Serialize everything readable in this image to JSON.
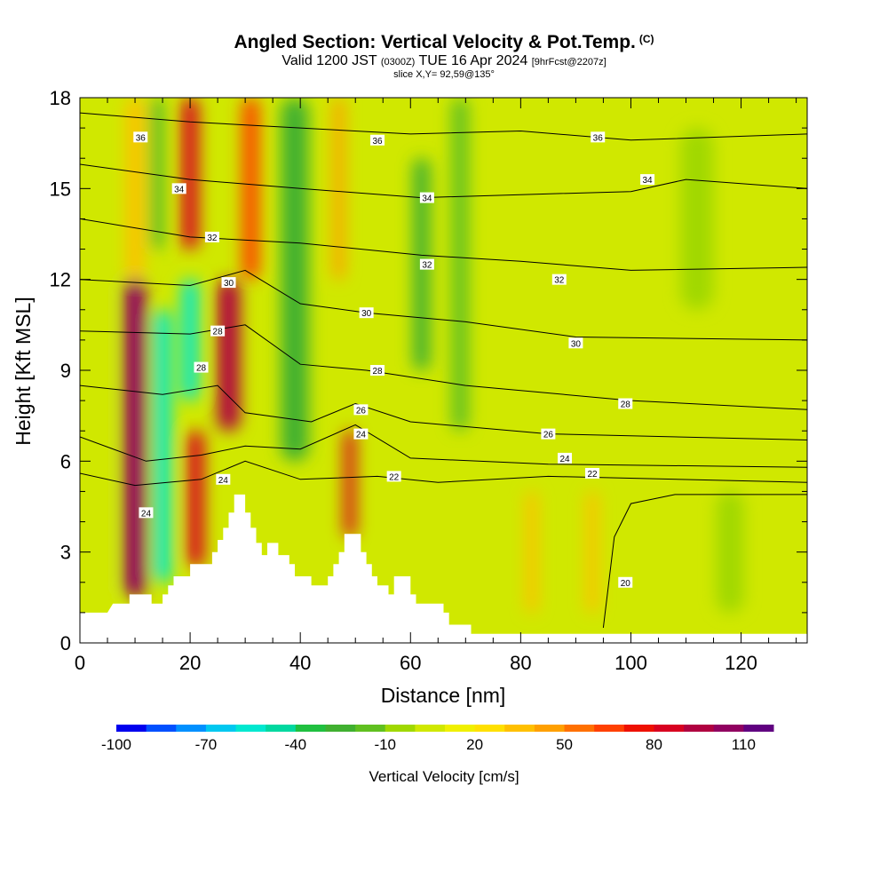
{
  "header": {
    "title": "Angled Section: Vertical Velocity & Pot.Temp.",
    "title_tag": "(C)",
    "valid_prefix": "Valid 1200 JST",
    "valid_z": "(0300Z)",
    "valid_date": "TUE 16 Apr 2024",
    "fcst": "[9hrFcst@2207z]",
    "slice": "slice X,Y= 92,59@135°"
  },
  "chart_data": {
    "type": "heatmap",
    "xlabel": "Distance [nm]",
    "ylabel": "Height [Kft MSL]",
    "xlim": [
      0,
      132
    ],
    "ylim": [
      0,
      18
    ],
    "x_ticks": [
      0,
      20,
      40,
      60,
      80,
      100,
      120
    ],
    "y_ticks": [
      0,
      3,
      6,
      9,
      12,
      15,
      18
    ],
    "colorbar": {
      "label": "Vertical Velocity [cm/s]",
      "tick_labels": [
        "-100",
        "-70",
        "-40",
        "-10",
        "20",
        "50",
        "80",
        "110"
      ],
      "tick_values": [
        -100,
        -70,
        -40,
        -10,
        20,
        50,
        80,
        110
      ],
      "range": [
        -100,
        120
      ],
      "colors": [
        "#0000ee",
        "#0050ff",
        "#0090ff",
        "#00c8f0",
        "#00e8d0",
        "#00d8a0",
        "#20c040",
        "#40b030",
        "#60c020",
        "#a0d800",
        "#d0e800",
        "#f0f000",
        "#ffe000",
        "#ffc000",
        "#ffa000",
        "#ff7000",
        "#ff4000",
        "#ee1000",
        "#d80020",
        "#b00040",
        "#900060",
        "#600080"
      ]
    },
    "velocity_cells": [
      {
        "x": 3,
        "w": 4,
        "ybot": 1,
        "ytop": 18,
        "v": 0
      },
      {
        "x": 10,
        "w": 4,
        "ybot": 1.5,
        "ytop": 12,
        "v": 105
      },
      {
        "x": 10,
        "w": 3,
        "ybot": 12,
        "ytop": 18,
        "v": 30
      },
      {
        "x": 15,
        "w": 3,
        "ybot": 2,
        "ytop": 11,
        "v": -55
      },
      {
        "x": 14,
        "w": 2,
        "ybot": 13,
        "ytop": 18,
        "v": -25
      },
      {
        "x": 21,
        "w": 3,
        "ybot": 2.5,
        "ytop": 7,
        "v": 85
      },
      {
        "x": 20,
        "w": 3,
        "ybot": 13,
        "ytop": 18,
        "v": 85
      },
      {
        "x": 20,
        "w": 3,
        "ybot": 8,
        "ytop": 12,
        "v": -60
      },
      {
        "x": 27,
        "w": 4,
        "ybot": 7,
        "ytop": 12,
        "v": 90
      },
      {
        "x": 31,
        "w": 3,
        "ybot": 12,
        "ytop": 18,
        "v": 65
      },
      {
        "x": 39,
        "w": 5,
        "ybot": 6,
        "ytop": 18,
        "v": -25
      },
      {
        "x": 49,
        "w": 2,
        "ybot": 3.5,
        "ytop": 7,
        "v": 80
      },
      {
        "x": 47,
        "w": 2,
        "ybot": 12,
        "ytop": 18,
        "v": 40
      },
      {
        "x": 62,
        "w": 3,
        "ybot": 9,
        "ytop": 16,
        "v": -22
      },
      {
        "x": 69,
        "w": 3,
        "ybot": 7,
        "ytop": 18,
        "v": -12
      },
      {
        "x": 82,
        "w": 2,
        "ybot": 1,
        "ytop": 5,
        "v": 30
      },
      {
        "x": 93,
        "w": 2,
        "ybot": 1,
        "ytop": 5,
        "v": 30
      },
      {
        "x": 112,
        "w": 6,
        "ybot": 11,
        "ytop": 17,
        "v": -5
      },
      {
        "x": 118,
        "w": 5,
        "ybot": 1,
        "ytop": 5,
        "v": -10
      }
    ],
    "terrain": [
      [
        0,
        1.0
      ],
      [
        5,
        1.0
      ],
      [
        6,
        1.3
      ],
      [
        9,
        1.3
      ],
      [
        9,
        1.6
      ],
      [
        13,
        1.6
      ],
      [
        13,
        1.3
      ],
      [
        15,
        1.3
      ],
      [
        15,
        1.6
      ],
      [
        16,
        1.6
      ],
      [
        16,
        1.9
      ],
      [
        17,
        1.9
      ],
      [
        17,
        2.2
      ],
      [
        20,
        2.2
      ],
      [
        20,
        2.6
      ],
      [
        24,
        2.6
      ],
      [
        24,
        3.0
      ],
      [
        25,
        3.0
      ],
      [
        25,
        3.4
      ],
      [
        26,
        3.4
      ],
      [
        26,
        3.8
      ],
      [
        27,
        3.8
      ],
      [
        27,
        4.3
      ],
      [
        28,
        4.3
      ],
      [
        28,
        4.9
      ],
      [
        30,
        4.9
      ],
      [
        30,
        4.3
      ],
      [
        31,
        4.3
      ],
      [
        31,
        3.8
      ],
      [
        32,
        3.8
      ],
      [
        32,
        3.3
      ],
      [
        33,
        3.3
      ],
      [
        33,
        2.9
      ],
      [
        34,
        2.9
      ],
      [
        34,
        3.3
      ],
      [
        36,
        3.3
      ],
      [
        36,
        2.9
      ],
      [
        38,
        2.9
      ],
      [
        38,
        2.6
      ],
      [
        39,
        2.6
      ],
      [
        39,
        2.2
      ],
      [
        42,
        2.2
      ],
      [
        42,
        1.9
      ],
      [
        45,
        1.9
      ],
      [
        45,
        2.2
      ],
      [
        46,
        2.2
      ],
      [
        46,
        2.6
      ],
      [
        47,
        2.6
      ],
      [
        47,
        3.0
      ],
      [
        48,
        3.0
      ],
      [
        48,
        3.6
      ],
      [
        51,
        3.6
      ],
      [
        51,
        3.0
      ],
      [
        52,
        3.0
      ],
      [
        52,
        2.6
      ],
      [
        53,
        2.6
      ],
      [
        53,
        2.2
      ],
      [
        54,
        2.2
      ],
      [
        54,
        1.9
      ],
      [
        56,
        1.9
      ],
      [
        56,
        1.6
      ],
      [
        57,
        1.6
      ],
      [
        57,
        2.2
      ],
      [
        60,
        2.2
      ],
      [
        60,
        1.6
      ],
      [
        61,
        1.6
      ],
      [
        61,
        1.3
      ],
      [
        66,
        1.3
      ],
      [
        66,
        1.0
      ],
      [
        67,
        1.0
      ],
      [
        67,
        0.6
      ],
      [
        71,
        0.6
      ],
      [
        71,
        0.3
      ],
      [
        132,
        0.3
      ]
    ],
    "theta_isolines": [
      {
        "label": "36",
        "points": [
          [
            0,
            17.5
          ],
          [
            20,
            17.2
          ],
          [
            40,
            17.0
          ],
          [
            60,
            16.8
          ],
          [
            80,
            16.9
          ],
          [
            100,
            16.6
          ],
          [
            132,
            16.8
          ]
        ]
      },
      {
        "label": "34",
        "points": [
          [
            0,
            15.8
          ],
          [
            20,
            15.3
          ],
          [
            40,
            15.0
          ],
          [
            62,
            14.7
          ],
          [
            80,
            14.8
          ],
          [
            100,
            14.9
          ],
          [
            110,
            15.3
          ],
          [
            132,
            15.0
          ]
        ]
      },
      {
        "label": "32",
        "points": [
          [
            0,
            14.0
          ],
          [
            20,
            13.4
          ],
          [
            40,
            13.2
          ],
          [
            62,
            12.8
          ],
          [
            80,
            12.6
          ],
          [
            100,
            12.3
          ],
          [
            132,
            12.4
          ]
        ]
      },
      {
        "label": "30",
        "points": [
          [
            0,
            12.0
          ],
          [
            20,
            11.8
          ],
          [
            30,
            12.3
          ],
          [
            40,
            11.2
          ],
          [
            52,
            10.9
          ],
          [
            70,
            10.6
          ],
          [
            90,
            10.1
          ],
          [
            132,
            10.0
          ]
        ]
      },
      {
        "label": "28",
        "points": [
          [
            0,
            10.3
          ],
          [
            20,
            10.2
          ],
          [
            30,
            10.5
          ],
          [
            40,
            9.2
          ],
          [
            52,
            9.0
          ],
          [
            70,
            8.5
          ],
          [
            100,
            8.0
          ],
          [
            132,
            7.7
          ]
        ]
      },
      {
        "label": "26",
        "points": [
          [
            0,
            8.5
          ],
          [
            15,
            8.2
          ],
          [
            25,
            8.5
          ],
          [
            30,
            7.6
          ],
          [
            42,
            7.3
          ],
          [
            50,
            7.9
          ],
          [
            60,
            7.3
          ],
          [
            85,
            6.9
          ],
          [
            132,
            6.7
          ]
        ]
      },
      {
        "label": "24",
        "points": [
          [
            0,
            6.8
          ],
          [
            12,
            6.0
          ],
          [
            22,
            6.2
          ],
          [
            30,
            6.5
          ],
          [
            40,
            6.4
          ],
          [
            50,
            7.2
          ],
          [
            60,
            6.1
          ],
          [
            85,
            5.9
          ],
          [
            132,
            5.8
          ]
        ]
      },
      {
        "label": "22",
        "points": [
          [
            0,
            5.6
          ],
          [
            10,
            5.2
          ],
          [
            22,
            5.4
          ],
          [
            30,
            6.0
          ],
          [
            40,
            5.4
          ],
          [
            54,
            5.5
          ],
          [
            65,
            5.3
          ],
          [
            85,
            5.5
          ],
          [
            132,
            5.3
          ]
        ]
      },
      {
        "label": "20",
        "points": [
          [
            95,
            0.5
          ],
          [
            96,
            2.0
          ],
          [
            97,
            3.5
          ],
          [
            100,
            4.6
          ],
          [
            108,
            4.9
          ],
          [
            132,
            4.9
          ]
        ]
      }
    ],
    "contour_labels": [
      {
        "text": "36",
        "x": 11,
        "y": 16.7
      },
      {
        "text": "36",
        "x": 54,
        "y": 16.6
      },
      {
        "text": "36",
        "x": 94,
        "y": 16.7
      },
      {
        "text": "34",
        "x": 18,
        "y": 15.0
      },
      {
        "text": "34",
        "x": 63,
        "y": 14.7
      },
      {
        "text": "34",
        "x": 103,
        "y": 15.3
      },
      {
        "text": "32",
        "x": 24,
        "y": 13.4
      },
      {
        "text": "32",
        "x": 63,
        "y": 12.5
      },
      {
        "text": "32",
        "x": 87,
        "y": 12.0
      },
      {
        "text": "30",
        "x": 27,
        "y": 11.9
      },
      {
        "text": "30",
        "x": 52,
        "y": 10.9
      },
      {
        "text": "30",
        "x": 90,
        "y": 9.9
      },
      {
        "text": "28",
        "x": 25,
        "y": 10.3
      },
      {
        "text": "28",
        "x": 22,
        "y": 9.1
      },
      {
        "text": "28",
        "x": 54,
        "y": 9.0
      },
      {
        "text": "28",
        "x": 99,
        "y": 7.9
      },
      {
        "text": "26",
        "x": 51,
        "y": 7.7
      },
      {
        "text": "26",
        "x": 85,
        "y": 6.9
      },
      {
        "text": "24",
        "x": 51,
        "y": 6.9
      },
      {
        "text": "24",
        "x": 26,
        "y": 5.4
      },
      {
        "text": "24",
        "x": 12,
        "y": 4.3
      },
      {
        "text": "24",
        "x": 88,
        "y": 6.1
      },
      {
        "text": "22",
        "x": 57,
        "y": 5.5
      },
      {
        "text": "22",
        "x": 93,
        "y": 5.6
      },
      {
        "text": "20",
        "x": 99,
        "y": 2.0
      }
    ]
  }
}
